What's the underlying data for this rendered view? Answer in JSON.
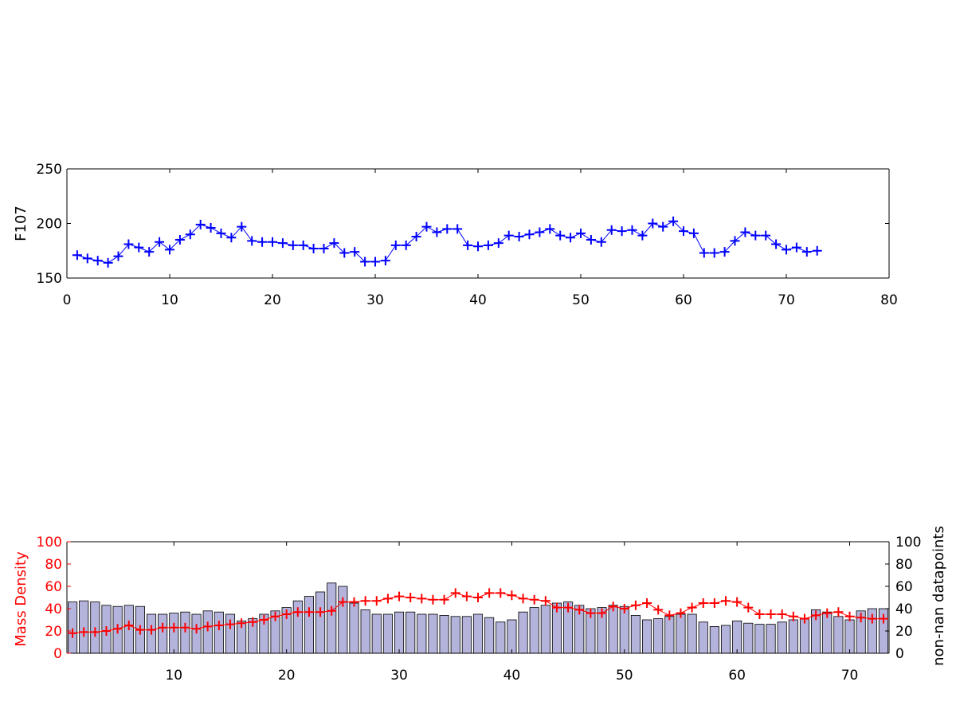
{
  "chart_data": [
    {
      "type": "line",
      "ylabel": "F107",
      "xlim": [
        0,
        80
      ],
      "ylim": [
        150,
        250
      ],
      "xticks": [
        0,
        10,
        20,
        30,
        40,
        50,
        60,
        70,
        80
      ],
      "yticks": [
        150,
        200,
        250
      ],
      "grid": false,
      "series": [
        {
          "color": "#0000ff",
          "marker": "plus",
          "x": [
            1,
            2,
            3,
            4,
            5,
            6,
            7,
            8,
            9,
            10,
            11,
            12,
            13,
            14,
            15,
            16,
            17,
            18,
            19,
            20,
            21,
            22,
            23,
            24,
            25,
            26,
            27,
            28,
            29,
            30,
            31,
            32,
            33,
            34,
            35,
            36,
            37,
            38,
            39,
            40,
            41,
            42,
            43,
            44,
            45,
            46,
            47,
            48,
            49,
            50,
            51,
            52,
            53,
            54,
            55,
            56,
            57,
            58,
            59,
            60,
            61,
            62,
            63,
            64,
            65,
            66,
            67,
            68,
            69,
            70,
            71,
            72,
            73
          ],
          "values": [
            171,
            168,
            166,
            164,
            170,
            181,
            178,
            174,
            183,
            176,
            185,
            190,
            199,
            196,
            191,
            187,
            197,
            184,
            183,
            183,
            182,
            180,
            180,
            177,
            177,
            182,
            173,
            174,
            165,
            165,
            166,
            180,
            180,
            188,
            197,
            192,
            195,
            195,
            180,
            179,
            180,
            182,
            189,
            188,
            190,
            192,
            195,
            189,
            187,
            191,
            185,
            183,
            194,
            193,
            194,
            189,
            200,
            197,
            202,
            193,
            191,
            173,
            173,
            174,
            184,
            192,
            189,
            189,
            181,
            176,
            178,
            174,
            175
          ]
        }
      ]
    },
    {
      "type": "bar",
      "xlim": [
        1,
        73
      ],
      "xticks": [
        10,
        20,
        30,
        40,
        50,
        60,
        70
      ],
      "grid": false,
      "axes": {
        "left": {
          "label": "Mass Density",
          "color": "#ff0000",
          "ylim": [
            0,
            100
          ],
          "ticks": [
            0,
            20,
            40,
            60,
            80,
            100
          ]
        },
        "right": {
          "label": "non-nan datapoints",
          "color": "#000000",
          "ylim": [
            0,
            100
          ],
          "ticks": [
            0,
            20,
            40,
            60,
            80,
            100
          ]
        }
      },
      "series": [
        {
          "axis": "right",
          "kind": "bar",
          "color": "#b3b3db",
          "x": [
            1,
            2,
            3,
            4,
            5,
            6,
            7,
            8,
            9,
            10,
            11,
            12,
            13,
            14,
            15,
            16,
            17,
            18,
            19,
            20,
            21,
            22,
            23,
            24,
            25,
            26,
            27,
            28,
            29,
            30,
            31,
            32,
            33,
            34,
            35,
            36,
            37,
            38,
            39,
            40,
            41,
            42,
            43,
            44,
            45,
            46,
            47,
            48,
            49,
            50,
            51,
            52,
            53,
            54,
            55,
            56,
            57,
            58,
            59,
            60,
            61,
            62,
            63,
            64,
            65,
            66,
            67,
            68,
            69,
            70,
            71,
            72,
            73
          ],
          "values": [
            46,
            47,
            46,
            43,
            42,
            43,
            42,
            35,
            35,
            36,
            37,
            35,
            38,
            37,
            35,
            29,
            31,
            35,
            38,
            41,
            47,
            51,
            55,
            63,
            60,
            45,
            39,
            35,
            35,
            37,
            37,
            35,
            35,
            34,
            33,
            33,
            35,
            32,
            28,
            30,
            37,
            41,
            43,
            45,
            46,
            43,
            40,
            41,
            43,
            42,
            34,
            30,
            31,
            33,
            35,
            35,
            28,
            24,
            25,
            29,
            27,
            26,
            26,
            28,
            30,
            31,
            39,
            37,
            33,
            30,
            38,
            40,
            40
          ]
        },
        {
          "axis": "left",
          "kind": "line",
          "color": "#ff0000",
          "marker": "plus",
          "x": [
            1,
            2,
            3,
            4,
            5,
            6,
            7,
            8,
            9,
            10,
            11,
            12,
            13,
            14,
            15,
            16,
            17,
            18,
            19,
            20,
            21,
            22,
            23,
            24,
            25,
            26,
            27,
            28,
            29,
            30,
            31,
            32,
            33,
            34,
            35,
            36,
            37,
            38,
            39,
            40,
            41,
            42,
            43,
            44,
            45,
            46,
            47,
            48,
            49,
            50,
            51,
            52,
            53,
            54,
            55,
            56,
            57,
            58,
            59,
            60,
            61,
            62,
            63,
            64,
            65,
            66,
            67,
            68,
            69,
            70,
            71,
            72,
            73
          ],
          "values": [
            18,
            19,
            19,
            20,
            22,
            25,
            21,
            21,
            23,
            23,
            23,
            22,
            24,
            25,
            26,
            27,
            28,
            30,
            33,
            35,
            37,
            37,
            37,
            38,
            46,
            46,
            47,
            47,
            49,
            51,
            50,
            49,
            48,
            48,
            54,
            51,
            50,
            54,
            54,
            52,
            49,
            48,
            47,
            41,
            41,
            39,
            36,
            36,
            42,
            40,
            43,
            45,
            39,
            34,
            36,
            41,
            45,
            45,
            47,
            46,
            41,
            35,
            35,
            35,
            33,
            31,
            34,
            36,
            37,
            33,
            32,
            31,
            31
          ]
        }
      ]
    }
  ]
}
